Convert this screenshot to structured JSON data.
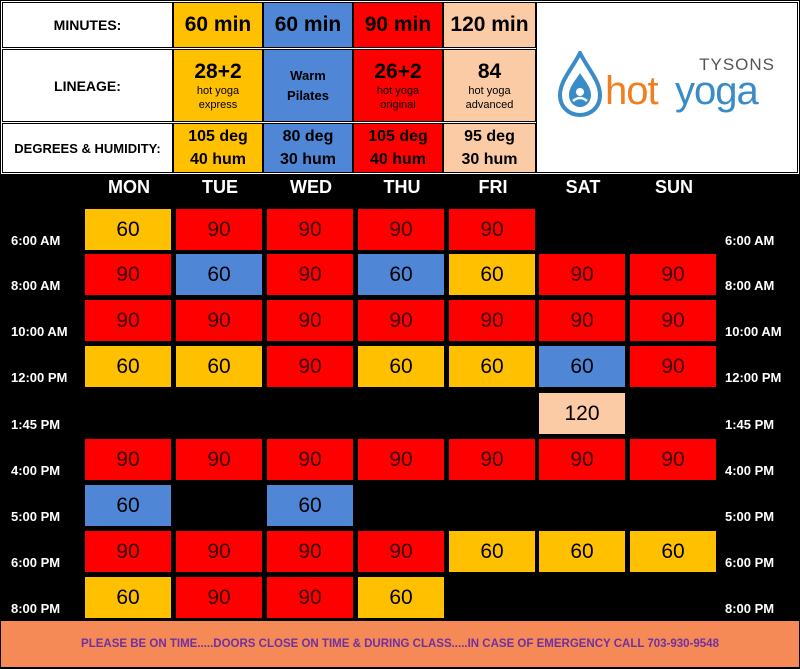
{
  "header": {
    "minutes_label": "MINUTES:",
    "lineage_label": "LINEAGE:",
    "degrees_label": "DEGREES & HUMIDITY:",
    "classes": [
      {
        "minutes": "60 min",
        "lineage": "28+2",
        "lineage_sub1": "hot yoga",
        "lineage_sub2": "express",
        "degrees": "105 deg",
        "humidity": "40 hum"
      },
      {
        "minutes": "60 min",
        "lineage": "Warm",
        "lineage_sub1": "Pilates",
        "lineage_sub2": "",
        "degrees": "80 deg",
        "humidity": "30 hum"
      },
      {
        "minutes": "90 min",
        "lineage": "26+2",
        "lineage_sub1": "hot yoga",
        "lineage_sub2": "original",
        "degrees": "105 deg",
        "humidity": "40 hum"
      },
      {
        "minutes": "120 min",
        "lineage": "84",
        "lineage_sub1": "hot yoga",
        "lineage_sub2": "advanced",
        "degrees": "95 deg",
        "humidity": "30 hum"
      }
    ]
  },
  "logo": {
    "tysons": "TYSONS",
    "hot": "hot",
    "yoga": "yoga"
  },
  "days": [
    "MON",
    "TUE",
    "WED",
    "THU",
    "FRI",
    "SAT",
    "SUN"
  ],
  "times": [
    "6:00 AM",
    "8:00 AM",
    "10:00 AM",
    "12:00 PM",
    "1:45 PM",
    "4:00 PM",
    "5:00 PM",
    "6:00 PM",
    "8:00 PM"
  ],
  "schedule": [
    [
      "60",
      "90",
      "90",
      "90",
      "90",
      "",
      ""
    ],
    [
      "90",
      "60",
      "90",
      "60",
      "60",
      "90",
      "90"
    ],
    [
      "90",
      "90",
      "90",
      "90",
      "90",
      "90",
      "90"
    ],
    [
      "60",
      "60",
      "90",
      "60",
      "60",
      "60",
      "90"
    ],
    [
      "",
      "",
      "",
      "",
      "",
      "120",
      ""
    ],
    [
      "90",
      "90",
      "90",
      "90",
      "90",
      "90",
      "90"
    ],
    [
      "60",
      "",
      "60",
      "",
      "",
      "",
      ""
    ],
    [
      "90",
      "90",
      "90",
      "90",
      "60",
      "60",
      "60"
    ],
    [
      "60",
      "90",
      "90",
      "60",
      "",
      "",
      ""
    ]
  ],
  "schedule_types": [
    [
      "express",
      "original",
      "original",
      "original",
      "original",
      "",
      ""
    ],
    [
      "original",
      "pilates",
      "original",
      "pilates",
      "express",
      "original",
      "original"
    ],
    [
      "original",
      "original",
      "original",
      "original",
      "original",
      "original",
      "original"
    ],
    [
      "express",
      "express",
      "original",
      "express",
      "express",
      "pilates",
      "original"
    ],
    [
      "",
      "",
      "",
      "",
      "",
      "advanced",
      ""
    ],
    [
      "original",
      "original",
      "original",
      "original",
      "original",
      "original",
      "original"
    ],
    [
      "pilates",
      "",
      "pilates",
      "",
      "",
      "",
      ""
    ],
    [
      "original",
      "original",
      "original",
      "original",
      "express",
      "express",
      "express"
    ],
    [
      "express",
      "original",
      "original",
      "express",
      "",
      "",
      ""
    ]
  ],
  "colors": {
    "express": "#FFC000",
    "pilates": "#4F86D6",
    "original": "#FF0000",
    "advanced": "#FBCBA6",
    "footer_bg": "#F58A56",
    "footer_text": "#7030A0"
  },
  "footer": "PLEASE BE ON TIME.....DOORS CLOSE ON TIME & DURING CLASS.....IN CASE OF EMERGENCY CALL 703-930-9548"
}
